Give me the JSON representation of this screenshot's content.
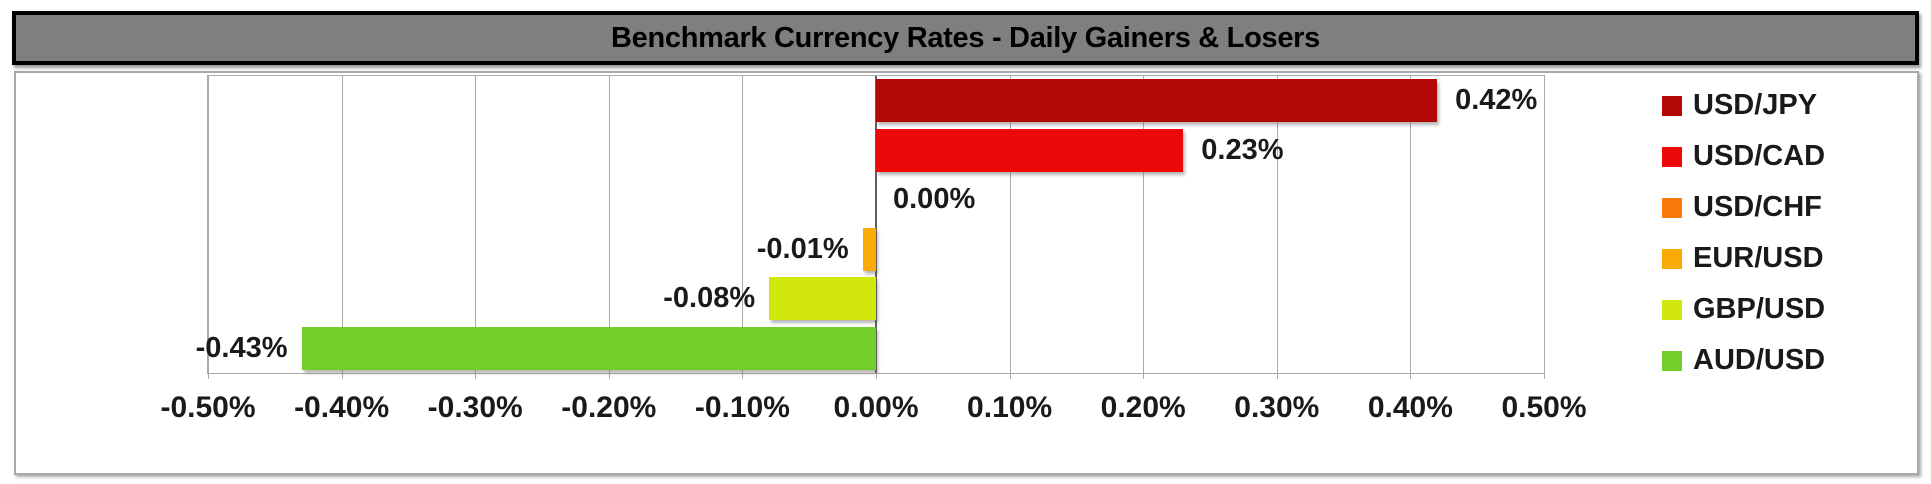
{
  "chart_data": {
    "type": "bar",
    "orientation": "horizontal",
    "title": "Benchmark Currency Rates - Daily Gainers & Losers",
    "categories": [
      "USD/JPY",
      "USD/CAD",
      "USD/CHF",
      "EUR/USD",
      "GBP/USD",
      "AUD/USD"
    ],
    "values": [
      0.42,
      0.23,
      0.0,
      -0.01,
      -0.08,
      -0.43
    ],
    "value_labels": [
      "0.42%",
      "0.23%",
      "0.00%",
      "-0.01%",
      "-0.08%",
      "-0.43%"
    ],
    "series_colors": [
      "#B20808",
      "#EC0909",
      "#F8790A",
      "#FAAB06",
      "#D2E70B",
      "#74CE28"
    ],
    "xlim": [
      -0.5,
      0.5
    ],
    "x_tick_labels": [
      "-0.50%",
      "-0.40%",
      "-0.30%",
      "-0.20%",
      "-0.10%",
      "0.00%",
      "0.10%",
      "0.20%",
      "0.30%",
      "0.40%",
      "0.50%"
    ],
    "grid": "vertical",
    "legend_position": "right"
  },
  "colors": {
    "title_background": "#7F7F7F",
    "title_border": "#000000",
    "chart_border": "#A9A9A9",
    "gridline": "#ABABAB",
    "zero_axis_line": "#5F5F5F",
    "text": "#1A1A1A",
    "background": "#FFFFFF"
  }
}
